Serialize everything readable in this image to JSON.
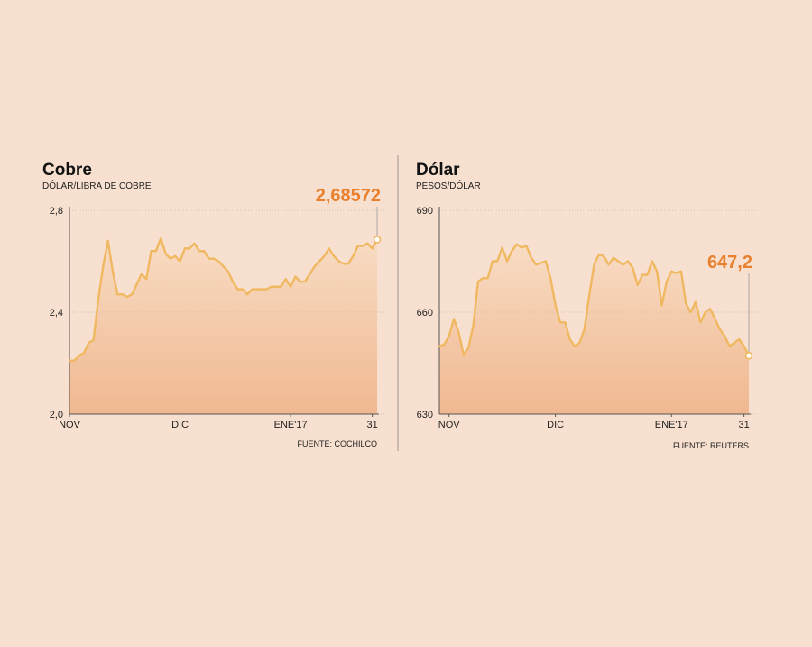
{
  "colors": {
    "background": "#f8e0d0",
    "line": "#f0b860",
    "area_top": "#f8dcc4",
    "area_bottom": "#f0b890",
    "callout": "#e8802e",
    "grid": "#c8b8a8",
    "divider": "#a09890"
  },
  "chart_data": [
    {
      "type": "area",
      "title": "Cobre",
      "subtitle": "DÓLAR/LIBRA DE COBRE",
      "source": "FUENTE: COCHILCO",
      "ylim": [
        2.0,
        2.8
      ],
      "y_ticks": [
        {
          "value": 2.0,
          "label": "2,0"
        },
        {
          "value": 2.4,
          "label": "2,4"
        },
        {
          "value": 2.8,
          "label": "2,8"
        }
      ],
      "x_ticks": [
        {
          "index": 0,
          "label": "NOV"
        },
        {
          "index": 23,
          "label": "DIC"
        },
        {
          "index": 46,
          "label": "ENE'17"
        },
        {
          "index": 63,
          "label": "31"
        }
      ],
      "grid": true,
      "callout": {
        "label": "2,68572",
        "index": 64
      },
      "series": [
        {
          "values": [
            2.21,
            2.21,
            2.23,
            2.24,
            2.28,
            2.29,
            2.45,
            2.58,
            2.68,
            2.56,
            2.47,
            2.47,
            2.46,
            2.47,
            2.51,
            2.55,
            2.53,
            2.64,
            2.64,
            2.69,
            2.63,
            2.61,
            2.62,
            2.6,
            2.65,
            2.65,
            2.67,
            2.64,
            2.64,
            2.61,
            2.61,
            2.6,
            2.58,
            2.56,
            2.52,
            2.49,
            2.49,
            2.47,
            2.49,
            2.49,
            2.49,
            2.49,
            2.5,
            2.5,
            2.5,
            2.53,
            2.5,
            2.54,
            2.52,
            2.52,
            2.55,
            2.58,
            2.6,
            2.62,
            2.65,
            2.62,
            2.6,
            2.59,
            2.59,
            2.62,
            2.66,
            2.66,
            2.67,
            2.65,
            2.685
          ]
        }
      ]
    },
    {
      "type": "area",
      "title": "Dólar",
      "subtitle": "PESOS/DÓLAR",
      "source": "FUENTE: REUTERS",
      "ylim": [
        630,
        690
      ],
      "y_ticks": [
        {
          "value": 630,
          "label": "630"
        },
        {
          "value": 660,
          "label": "660"
        },
        {
          "value": 690,
          "label": "690"
        }
      ],
      "x_ticks": [
        {
          "index": 2,
          "label": "NOV"
        },
        {
          "index": 24,
          "label": "DIC"
        },
        {
          "index": 48,
          "label": "ENE'17"
        },
        {
          "index": 63,
          "label": "31"
        }
      ],
      "grid": true,
      "callout": {
        "label": "647,2",
        "index": 64
      },
      "series": [
        {
          "values": [
            650,
            650.5,
            653,
            658,
            654,
            647.5,
            649.5,
            656,
            669,
            670,
            670,
            675,
            675,
            679,
            675,
            678,
            680,
            679,
            679.5,
            676,
            674,
            674.5,
            675,
            670,
            662,
            657,
            657,
            652,
            650,
            651,
            655,
            665,
            674,
            677,
            676.5,
            674,
            676,
            675,
            674,
            675,
            673,
            668,
            671,
            671,
            675,
            672,
            662,
            669,
            672,
            671.5,
            672,
            662.5,
            660,
            663,
            657,
            660,
            661,
            658,
            655,
            653,
            650,
            651,
            652,
            650,
            647.2
          ]
        }
      ]
    }
  ]
}
